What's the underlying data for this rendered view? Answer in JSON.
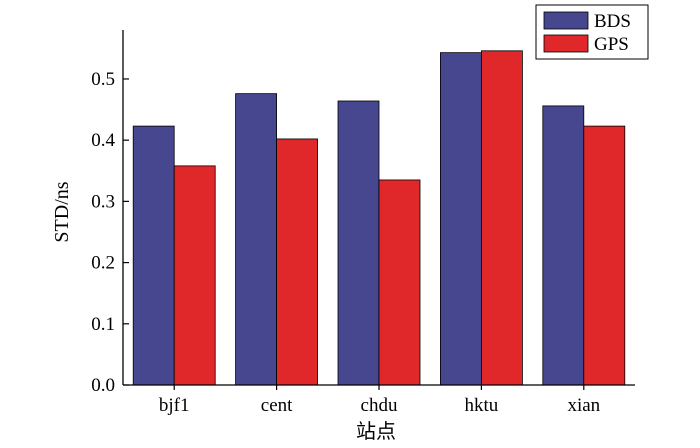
{
  "chart_data": {
    "type": "bar",
    "categories": [
      "bjf1",
      "cent",
      "chdu",
      "hktu",
      "xian"
    ],
    "series": [
      {
        "name": "BDS",
        "color": "#46478f",
        "values": [
          0.423,
          0.476,
          0.464,
          0.543,
          0.456
        ]
      },
      {
        "name": "GPS",
        "color": "#e0282a",
        "values": [
          0.358,
          0.402,
          0.335,
          0.546,
          0.423
        ]
      }
    ],
    "xlabel": "站点",
    "ylabel": "STD/ns",
    "ylim": [
      0,
      0.58
    ],
    "yticks": [
      "0.0",
      "0.1",
      "0.2",
      "0.3",
      "0.4",
      "0.5"
    ],
    "legend_position": "top-right",
    "grid": false
  }
}
